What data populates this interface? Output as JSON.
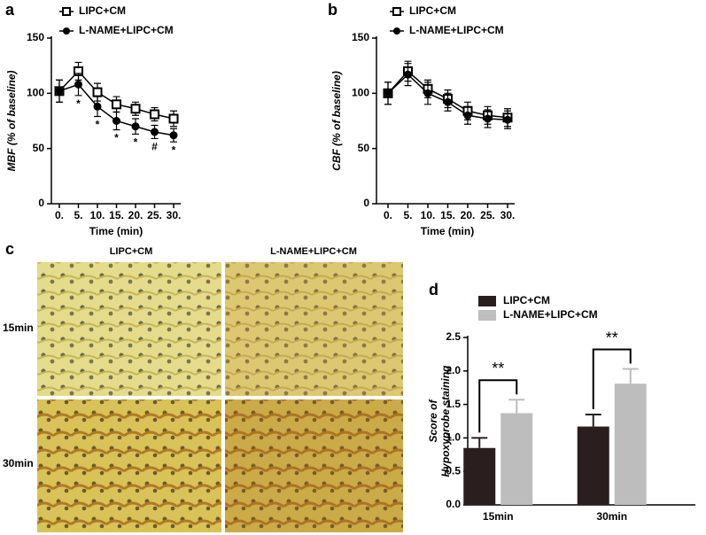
{
  "chart_data": [
    {
      "type": "line",
      "panel_label": "a",
      "ylabel": "MBF (% of baseline)",
      "xlabel": "Time (min)",
      "categories": [
        "0.",
        "5.",
        "10.",
        "15.",
        "20.",
        "25.",
        "30."
      ],
      "ylim": [
        0,
        150
      ],
      "yticks": [
        0,
        50,
        100,
        150
      ],
      "series": [
        {
          "name": "LIPC+CM",
          "marker": "open-square",
          "color": "#000000",
          "values": [
            102,
            120,
            101,
            90,
            86,
            81,
            77
          ],
          "errors": [
            10,
            8,
            8,
            7,
            6,
            6,
            7
          ]
        },
        {
          "name": "L-NAME+LIPC+CM",
          "marker": "filled-circle",
          "color": "#000000",
          "values": [
            102,
            108,
            88,
            75,
            70,
            65,
            62
          ],
          "errors": [
            10,
            10,
            9,
            8,
            7,
            6,
            6
          ],
          "annotations": [
            null,
            "*",
            "*",
            "*",
            "*",
            "#",
            "*"
          ]
        }
      ]
    },
    {
      "type": "line",
      "panel_label": "b",
      "ylabel": "CBF (% of baseline)",
      "xlabel": "Time (min)",
      "categories": [
        "0.",
        "5.",
        "10.",
        "15.",
        "20.",
        "25.",
        "30."
      ],
      "ylim": [
        0,
        150
      ],
      "yticks": [
        0,
        50,
        100,
        150
      ],
      "series": [
        {
          "name": "LIPC+CM",
          "marker": "open-square",
          "color": "#000000",
          "values": [
            100,
            120,
            104,
            95,
            84,
            80,
            78
          ],
          "errors": [
            10,
            9,
            8,
            8,
            8,
            8,
            8
          ]
        },
        {
          "name": "L-NAME+LIPC+CM",
          "marker": "filled-circle",
          "color": "#000000",
          "values": [
            100,
            117,
            100,
            92,
            80,
            77,
            76
          ],
          "errors": [
            10,
            10,
            10,
            8,
            8,
            8,
            8
          ]
        }
      ]
    },
    {
      "type": "bar",
      "panel_label": "d",
      "ylabel": [
        "Score of",
        "Hypoxyprobe staining"
      ],
      "categories": [
        "15min",
        "30min"
      ],
      "ylim": [
        0,
        2.5
      ],
      "yticks": [
        {
          "value": 0,
          "label": "0.0"
        },
        {
          "value": 0.5,
          "label": "0.5"
        },
        {
          "value": 1,
          "label": "1.0"
        },
        {
          "value": 1.5,
          "label": "1.5"
        },
        {
          "value": 2,
          "label": "2.0"
        },
        {
          "value": 2.5,
          "label": "2.5"
        }
      ],
      "annotations": [
        "**",
        "**"
      ],
      "series": [
        {
          "name": "LIPC+CM",
          "color": "#2b1e1e",
          "values": [
            0.85,
            1.17
          ],
          "errors": [
            0.15,
            0.18
          ]
        },
        {
          "name": "L-NAME+LIPC+CM",
          "color": "#bdbdbd",
          "values": [
            1.37,
            1.81
          ],
          "errors": [
            0.2,
            0.22
          ]
        }
      ]
    }
  ],
  "panel_c": {
    "label": "c",
    "columns": [
      "LIPC+CM",
      "L-NAME+LIPC+CM"
    ],
    "rows": [
      "15min",
      "30min"
    ]
  }
}
